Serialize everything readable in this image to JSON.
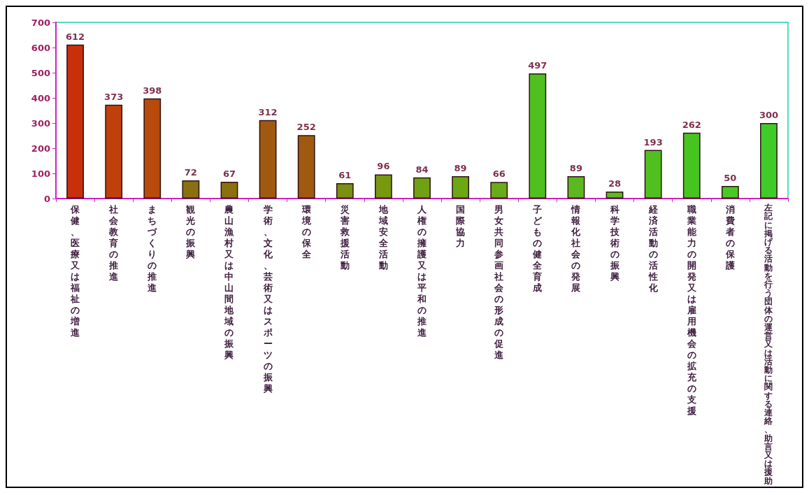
{
  "chart_data": {
    "type": "bar",
    "categories": [
      "保健、医療又は福祉の増進",
      "社会教育の推進",
      "まちづくりの推進",
      "観光の振興",
      "農山漁村又は中山間地域の振興",
      "学術、文化、芸術又はスポーツの振興",
      "環境の保全",
      "災害救援活動",
      "地域安全活動",
      "人権の擁護又は平和の推進",
      "国際協力",
      "男女共同参画社会の形成の促進",
      "子どもの健全育成",
      "情報化社会の発展",
      "科学技術の振興",
      "経済活動の活性化",
      "職業能力の開発又は雇用機会の拡充の支援",
      "消費者の保護",
      "左記に掲げる活動を行う団体の運営又は活動に関する連絡、助言又は援助"
    ],
    "values": [
      612,
      373,
      398,
      72,
      67,
      312,
      252,
      61,
      96,
      84,
      89,
      66,
      497,
      89,
      28,
      193,
      262,
      50,
      300
    ],
    "colors": [
      "#c8300c",
      "#c0400c",
      "#b84a0c",
      "#8a7010",
      "#8a7010",
      "#a05a10",
      "#a05a10",
      "#7a9010",
      "#789810",
      "#70a014",
      "#6ca814",
      "#68ac18",
      "#50c020",
      "#5cb820",
      "#58bc20",
      "#50c020",
      "#48c420",
      "#48c824",
      "#40cc28"
    ],
    "ylim": [
      0,
      700
    ],
    "yticks": [
      0,
      100,
      200,
      300,
      400,
      500,
      600,
      700
    ],
    "data_labels": true,
    "grid": false
  }
}
